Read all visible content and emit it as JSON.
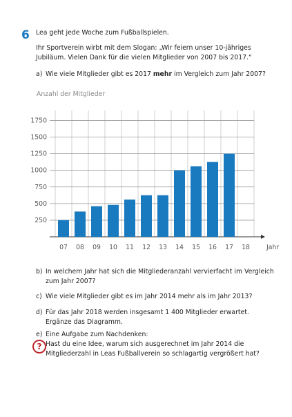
{
  "task_number": "6",
  "intro": [
    "Lea geht jede Woche zum Fußballspielen.",
    "Ihr Sportverein wirbt mit dem Slogan: „Wir feiern unser 10-jähriges",
    "Jubiläum. Vielen Dank für die vielen Mitglieder von 2007 bis 2017.“"
  ],
  "question_a": {
    "label": "a)",
    "parts": [
      "Wie viele Mitglieder gibt es 2017 ",
      "mehr",
      " im Vergleich zum Jahr 2007?"
    ]
  },
  "chart_data": {
    "type": "bar",
    "y_axis_label": "Anzahl der Mitglieder",
    "x_axis_label": "Jahr",
    "categories": [
      "07",
      "08",
      "09",
      "10",
      "11",
      "12",
      "13",
      "14",
      "15",
      "16",
      "17",
      "18"
    ],
    "values": [
      250,
      380,
      460,
      480,
      560,
      625,
      625,
      1000,
      1060,
      1125,
      1250,
      null
    ],
    "color": "#1a7ac0",
    "ylim": [
      0,
      1900
    ],
    "yticks": [
      250,
      500,
      750,
      1000,
      1250,
      1500,
      1750
    ],
    "grid": true
  },
  "questions": [
    {
      "label": "b)",
      "lines": [
        "In welchem Jahr hat sich die Mitgliederanzahl vervierfacht im Vergleich",
        "zum Jahr 2007?"
      ]
    },
    {
      "label": "c)",
      "lines": [
        "Wie viele Mitglieder gibt es im Jahr 2014 mehr als im Jahr 2013?"
      ]
    },
    {
      "label": "d)",
      "lines": [
        "Für das Jahr 2018 werden insgesamt 1 400 Mitglieder erwartet.",
        "Ergänze das Diagramm."
      ]
    },
    {
      "label": "e)",
      "lines": [
        "Eine Aufgabe zum Nachdenken:",
        "Hast du eine Idee, warum sich ausgerechnet im Jahr 2014 die",
        "Mitgliederzahl in Leas Fußballverein so schlagartig vergrößert hat?"
      ]
    }
  ],
  "icon": "?"
}
